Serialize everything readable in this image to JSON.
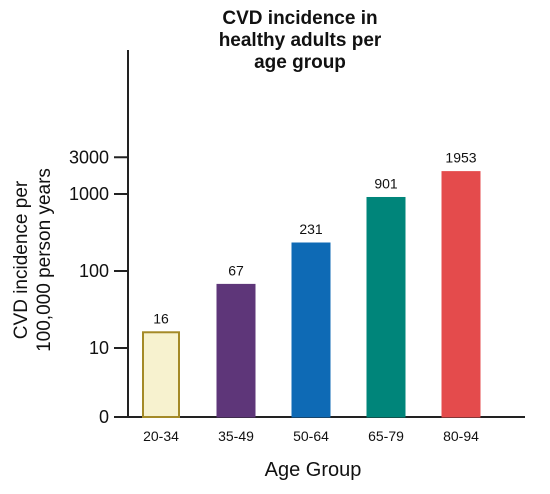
{
  "chart_data": {
    "type": "bar",
    "title_lines": [
      "CVD incidence in",
      "healthy adults per",
      "age group"
    ],
    "xlabel": "Age Group",
    "ylabel_lines": [
      "CVD incidence per",
      "100,000 person years"
    ],
    "categories": [
      "20-34",
      "35-49",
      "50-64",
      "65-79",
      "80-94"
    ],
    "values": [
      16,
      67,
      231,
      901,
      1953
    ],
    "data_labels": [
      "16",
      "67",
      "231",
      "901",
      "1953"
    ],
    "colors": [
      "#f7f2cf",
      "#5e3679",
      "#0e6ab5",
      "#00857a",
      "#e44b4c"
    ],
    "edge_colors": [
      "#a48a28",
      "#5e3679",
      "#0e6ab5",
      "#00857a",
      "#e44b4c"
    ],
    "y_ticks": [
      {
        "value": 0,
        "label": "0"
      },
      {
        "value": 10,
        "label": "10"
      },
      {
        "value": 100,
        "label": "100"
      },
      {
        "value": 1000,
        "label": "1000"
      },
      {
        "value": 3000,
        "label": "3000"
      }
    ],
    "yscale": "broken-log",
    "grid": false,
    "legend": "none"
  }
}
